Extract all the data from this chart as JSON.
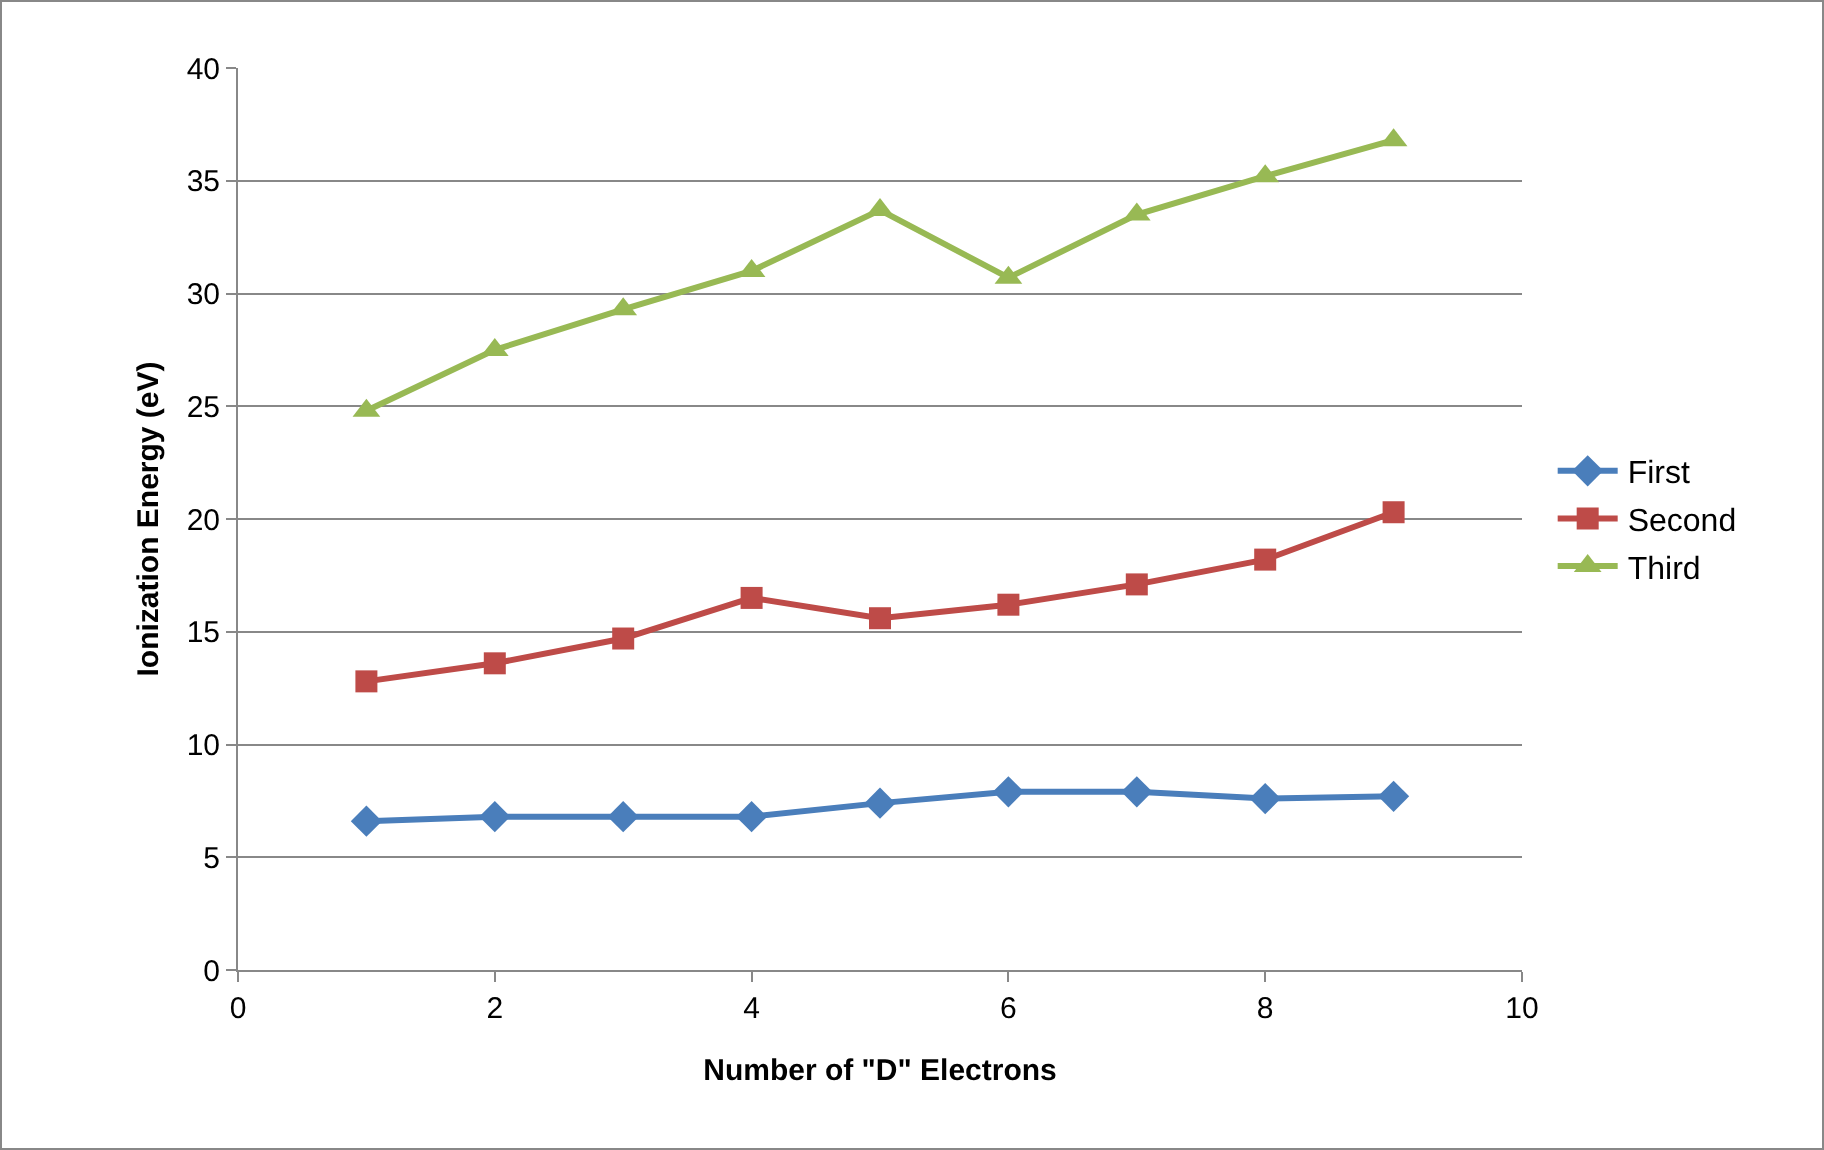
{
  "chart_data": {
    "type": "line",
    "xlabel": "Number of \"D\" Electrons",
    "ylabel": "Ionization Energy (eV)",
    "x": [
      1,
      2,
      3,
      4,
      5,
      6,
      7,
      8,
      9
    ],
    "series": [
      {
        "name": "First",
        "color": "#4a7ebb",
        "marker": "diamond",
        "values": [
          6.6,
          6.8,
          6.8,
          6.8,
          7.4,
          7.9,
          7.9,
          7.6,
          7.7
        ]
      },
      {
        "name": "Second",
        "color": "#be4b48",
        "marker": "square",
        "values": [
          12.8,
          13.6,
          14.7,
          16.5,
          15.6,
          16.2,
          17.1,
          18.2,
          20.3
        ]
      },
      {
        "name": "Third",
        "color": "#98b954",
        "marker": "triangle",
        "values": [
          24.8,
          27.5,
          29.3,
          31.0,
          33.7,
          30.7,
          33.5,
          35.2,
          36.8
        ]
      }
    ],
    "xlim": [
      0,
      10
    ],
    "xticks": [
      0,
      2,
      4,
      6,
      8,
      10
    ],
    "ylim": [
      0,
      40
    ],
    "yticks": [
      0,
      5,
      10,
      15,
      20,
      25,
      30,
      35,
      40
    ],
    "grid": "y",
    "legend": "right",
    "line_style": "solid"
  }
}
